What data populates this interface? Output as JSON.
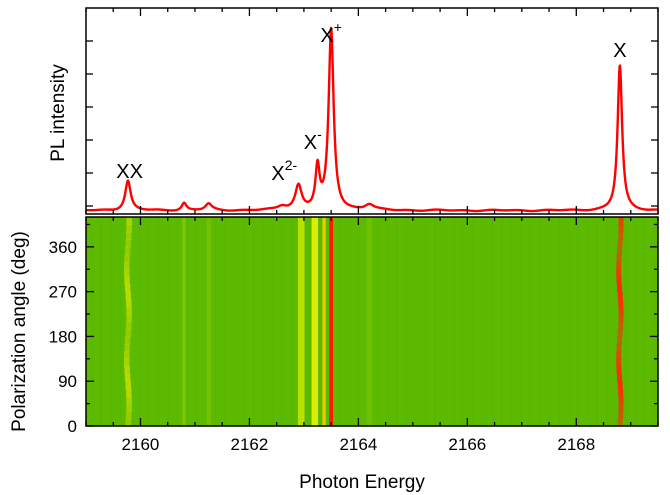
{
  "chart_data": [
    {
      "type": "line",
      "panel": "top",
      "xlabel": "",
      "ylabel": "PL intensity",
      "xlim": [
        2159,
        2169.5
      ],
      "yticks_labeled": false,
      "color": "#ff0000",
      "peaks": [
        {
          "x": 2159.77,
          "y": 0.16,
          "w": 0.06
        },
        {
          "x": 2160.8,
          "y": 0.04,
          "w": 0.05
        },
        {
          "x": 2161.25,
          "y": 0.035,
          "w": 0.07
        },
        {
          "x": 2162.6,
          "y": 0.02,
          "w": 0.1
        },
        {
          "x": 2162.9,
          "y": 0.13,
          "w": 0.07
        },
        {
          "x": 2163.25,
          "y": 0.22,
          "w": 0.045
        },
        {
          "x": 2163.5,
          "y": 0.97,
          "w": 0.055
        },
        {
          "x": 2164.2,
          "y": 0.03,
          "w": 0.1
        },
        {
          "x": 2168.8,
          "y": 0.78,
          "w": 0.05
        }
      ],
      "annotations": [
        {
          "text": "XX",
          "sup": "",
          "x": 2159.8
        },
        {
          "text": "X",
          "sup": "2-",
          "x": 2162.75
        },
        {
          "text": "X",
          "sup": "-",
          "x": 2163.2
        },
        {
          "text": "X",
          "sup": "+",
          "x": 2163.5
        },
        {
          "text": "X",
          "sup": "",
          "x": 2168.8
        }
      ]
    },
    {
      "type": "heatmap",
      "panel": "bottom",
      "xlabel": "Photon Energy",
      "ylabel": "Polarization angle (deg)",
      "xlim": [
        2159,
        2169.5
      ],
      "ylim": [
        0,
        420
      ],
      "xticks": [
        2160,
        2162,
        2164,
        2166,
        2168
      ],
      "yticks": [
        0,
        90,
        180,
        270,
        360
      ],
      "background_color": "#5cba00",
      "bands": [
        {
          "x": 2159.77,
          "w": 0.05,
          "color": "#d6e600",
          "opacity": 0.75,
          "modulated": true
        },
        {
          "x": 2160.8,
          "w": 0.03,
          "color": "#86cc00",
          "opacity": 0.8,
          "modulated": false
        },
        {
          "x": 2161.25,
          "w": 0.04,
          "color": "#80c800",
          "opacity": 0.6,
          "modulated": false
        },
        {
          "x": 2162.95,
          "w": 0.06,
          "color": "#c8e600",
          "opacity": 0.85,
          "modulated": false
        },
        {
          "x": 2163.2,
          "w": 0.06,
          "color": "#e6f000",
          "opacity": 0.95,
          "modulated": false
        },
        {
          "x": 2163.37,
          "w": 0.03,
          "color": "#ffcc00",
          "opacity": 0.9,
          "modulated": false
        },
        {
          "x": 2163.5,
          "w": 0.035,
          "color": "#ff1a00",
          "opacity": 1.0,
          "modulated": false
        },
        {
          "x": 2164.2,
          "w": 0.05,
          "color": "#78c400",
          "opacity": 0.7,
          "modulated": false
        },
        {
          "x": 2168.8,
          "w": 0.045,
          "color": "#ff2a00",
          "opacity": 1.0,
          "modulated": true
        }
      ]
    }
  ]
}
